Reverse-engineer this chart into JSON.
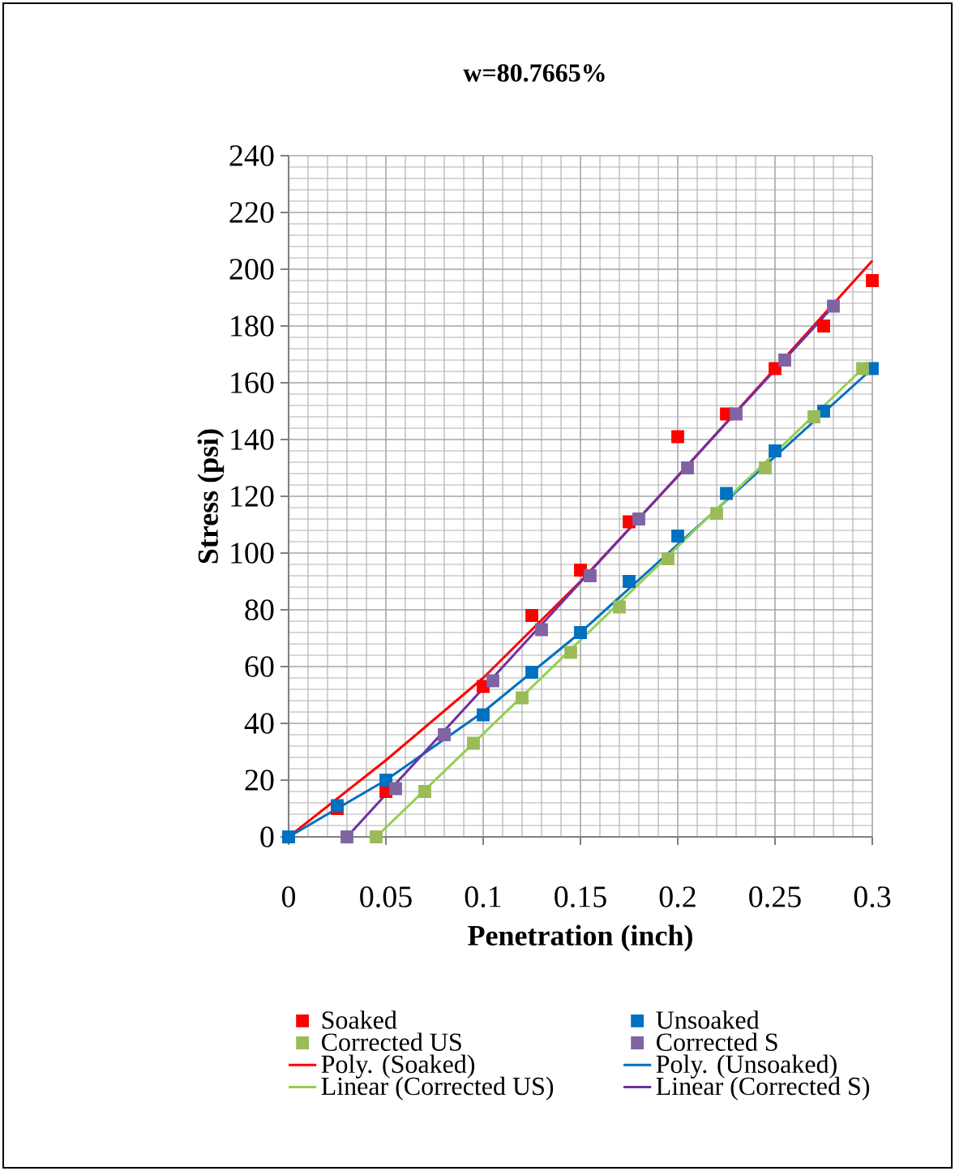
{
  "chart_data": {
    "type": "scatter",
    "title": "w=80.7665%",
    "xlabel": "Penetration (inch)",
    "ylabel": "Stress (psi)",
    "xlim": [
      0,
      0.3
    ],
    "ylim": [
      0,
      240
    ],
    "xticks": [
      0,
      0.05,
      0.1,
      0.15,
      0.2,
      0.25,
      0.3
    ],
    "yticks": [
      0,
      20,
      40,
      60,
      80,
      100,
      120,
      140,
      160,
      180,
      200,
      220,
      240
    ],
    "grid": true,
    "legend": "bottom",
    "series": [
      {
        "name": "Soaked",
        "color": "#ff0000",
        "marker": "square",
        "x": [
          0,
          0.025,
          0.05,
          0.1,
          0.125,
          0.15,
          0.175,
          0.2,
          0.225,
          0.25,
          0.275,
          0.3
        ],
        "values": [
          0,
          10,
          16,
          53,
          78,
          94,
          111,
          141,
          149,
          165,
          180,
          196
        ]
      },
      {
        "name": "Unsoaked",
        "color": "#0070c0",
        "marker": "square",
        "x": [
          0,
          0.025,
          0.05,
          0.1,
          0.125,
          0.15,
          0.175,
          0.2,
          0.225,
          0.25,
          0.275,
          0.3
        ],
        "values": [
          0,
          11,
          20,
          43,
          58,
          72,
          90,
          106,
          121,
          136,
          150,
          165
        ]
      },
      {
        "name": "Corrected US",
        "color": "#9bbb59",
        "marker": "square",
        "x": [
          0.045,
          0.07,
          0.095,
          0.12,
          0.145,
          0.17,
          0.195,
          0.22,
          0.245,
          0.27,
          0.295
        ],
        "values": [
          0,
          16,
          33,
          49,
          65,
          81,
          98,
          114,
          130,
          148,
          165
        ]
      },
      {
        "name": "Corrected S",
        "color": "#8064a2",
        "marker": "square",
        "x": [
          0.03,
          0.055,
          0.08,
          0.105,
          0.13,
          0.155,
          0.18,
          0.205,
          0.23,
          0.255,
          0.28
        ],
        "values": [
          0,
          17,
          36,
          55,
          73,
          92,
          112,
          130,
          149,
          168,
          187
        ]
      },
      {
        "name": "Poly. (Soaked)",
        "type": "line",
        "color": "#ff0000",
        "marker": "none",
        "x": [
          0,
          0.05,
          0.1,
          0.15,
          0.2,
          0.25,
          0.3
        ],
        "values": [
          0,
          27,
          56,
          90,
          127,
          165,
          203
        ]
      },
      {
        "name": "Poly. (Unsoaked)",
        "type": "line",
        "color": "#0070c0",
        "marker": "none",
        "x": [
          0,
          0.05,
          0.1,
          0.15,
          0.2,
          0.25,
          0.3
        ],
        "values": [
          0,
          20,
          44,
          72,
          103,
          134,
          165
        ]
      },
      {
        "name": "Linear (Corrected US)",
        "type": "line",
        "color": "#92d050",
        "marker": "none",
        "x": [
          0.045,
          0.295
        ],
        "values": [
          0,
          165
        ]
      },
      {
        "name": "Linear (Corrected S)",
        "type": "line",
        "color": "#7030a0",
        "marker": "none",
        "x": [
          0.03,
          0.28
        ],
        "values": [
          0,
          187
        ]
      }
    ]
  }
}
